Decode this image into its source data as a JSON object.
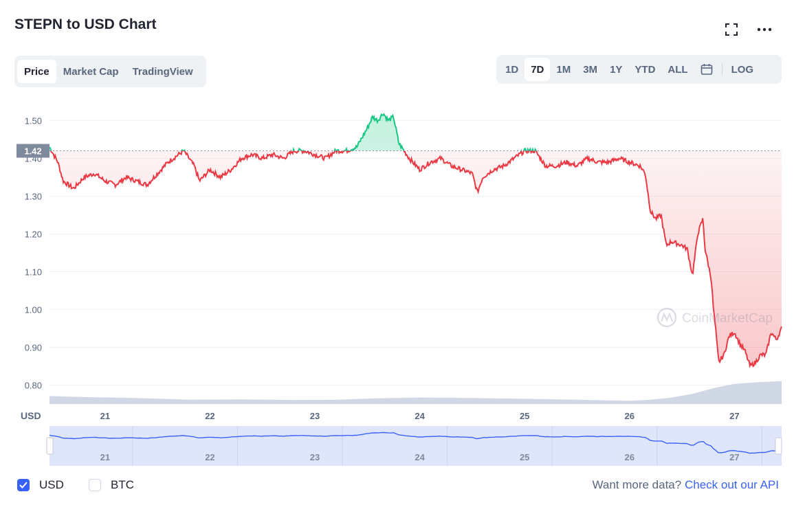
{
  "header": {
    "title": "STEPN to USD Chart"
  },
  "tabs": [
    {
      "label": "Price",
      "active": true
    },
    {
      "label": "Market Cap",
      "active": false
    },
    {
      "label": "TradingView",
      "active": false
    }
  ],
  "ranges": [
    {
      "label": "1D",
      "active": false
    },
    {
      "label": "7D",
      "active": true
    },
    {
      "label": "1M",
      "active": false
    },
    {
      "label": "3M",
      "active": false
    },
    {
      "label": "1Y",
      "active": false
    },
    {
      "label": "YTD",
      "active": false
    },
    {
      "label": "ALL",
      "active": false
    }
  ],
  "log_label": "LOG",
  "footer": {
    "usd_label": "USD",
    "btc_label": "BTC",
    "more_text": "Want more data?",
    "api_link": "Check out our API"
  },
  "colors": {
    "up": "#16c784",
    "down": "#ea3943",
    "accent": "#3861fb",
    "volume": "#cfd6e4"
  },
  "chart_data": {
    "type": "line",
    "currency_label": "USD",
    "watermark": "CoinMarketCap",
    "ylim": [
      0.75,
      1.55
    ],
    "y_ticks": [
      "1.50",
      "1.40",
      "1.30",
      "1.20",
      "1.10",
      "1.00",
      "0.90",
      "0.80"
    ],
    "x_ticks": [
      "21",
      "22",
      "23",
      "24",
      "25",
      "26",
      "27"
    ],
    "xlim": [
      20.47,
      27.45
    ],
    "reference_value": 1.42,
    "reference_label": "1.42",
    "series": [
      {
        "x": [
          20.47,
          20.55,
          20.6,
          20.7,
          20.8,
          20.9,
          21.0,
          21.1,
          21.2,
          21.3,
          21.4,
          21.5,
          21.6,
          21.7,
          21.75,
          21.85,
          21.9,
          22.0,
          22.1,
          22.2,
          22.3,
          22.4,
          22.5,
          22.6,
          22.7,
          22.8,
          22.9,
          23.0,
          23.1,
          23.2,
          23.3,
          23.4,
          23.5,
          23.55,
          23.6,
          23.65,
          23.7,
          23.75,
          23.8,
          23.9,
          24.0,
          24.1,
          24.2,
          24.3,
          24.4,
          24.5,
          24.55,
          24.6,
          24.7,
          24.8,
          24.9,
          25.0,
          25.1,
          25.2,
          25.3,
          25.4,
          25.5,
          25.6,
          25.7,
          25.8,
          25.9,
          26.0,
          26.1,
          26.15,
          26.2,
          26.25,
          26.3,
          26.35,
          26.4,
          26.5,
          26.55,
          26.6,
          26.65,
          26.7,
          26.72,
          26.75,
          26.78,
          26.8,
          26.82,
          26.85,
          26.9,
          26.95,
          27.0,
          27.05,
          27.1,
          27.15,
          27.2,
          27.25,
          27.3,
          27.35,
          27.4,
          27.45
        ],
        "y": [
          1.43,
          1.39,
          1.34,
          1.32,
          1.35,
          1.36,
          1.34,
          1.33,
          1.35,
          1.34,
          1.33,
          1.36,
          1.39,
          1.41,
          1.42,
          1.38,
          1.34,
          1.37,
          1.35,
          1.37,
          1.4,
          1.41,
          1.4,
          1.41,
          1.4,
          1.42,
          1.42,
          1.41,
          1.4,
          1.42,
          1.42,
          1.43,
          1.48,
          1.51,
          1.5,
          1.52,
          1.5,
          1.51,
          1.44,
          1.4,
          1.37,
          1.39,
          1.4,
          1.38,
          1.37,
          1.36,
          1.31,
          1.35,
          1.37,
          1.38,
          1.4,
          1.42,
          1.42,
          1.38,
          1.38,
          1.39,
          1.38,
          1.4,
          1.39,
          1.39,
          1.4,
          1.39,
          1.38,
          1.36,
          1.26,
          1.24,
          1.25,
          1.17,
          1.18,
          1.17,
          1.16,
          1.09,
          1.2,
          1.24,
          1.16,
          1.12,
          1.08,
          1.0,
          0.95,
          0.86,
          0.88,
          0.93,
          0.94,
          0.91,
          0.89,
          0.85,
          0.86,
          0.88,
          0.88,
          0.94,
          0.92,
          0.95
        ]
      }
    ],
    "volume": {
      "x": [
        20.47,
        20.8,
        21.3,
        21.8,
        22.3,
        22.8,
        23.2,
        23.6,
        24.0,
        24.5,
        25.0,
        25.5,
        26.0,
        26.2,
        26.4,
        26.6,
        26.8,
        27.0,
        27.2,
        27.45
      ],
      "relative": [
        0.55,
        0.48,
        0.42,
        0.3,
        0.32,
        0.28,
        0.29,
        0.4,
        0.45,
        0.42,
        0.36,
        0.3,
        0.22,
        0.3,
        0.45,
        0.7,
        1.1,
        1.4,
        1.5,
        1.58
      ]
    }
  }
}
